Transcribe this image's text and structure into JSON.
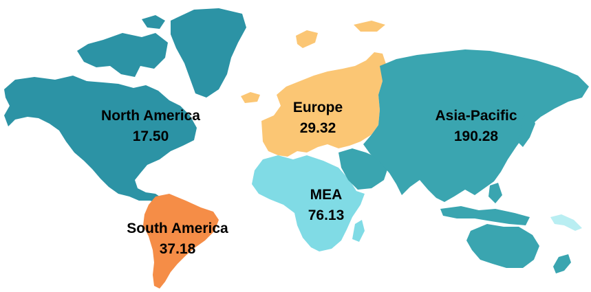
{
  "regions": [
    {
      "id": "north-america",
      "name": "North America",
      "value": "17.50",
      "color": "#2c93a5"
    },
    {
      "id": "south-america",
      "name": "South America",
      "value": "37.18",
      "color": "#f58d47"
    },
    {
      "id": "europe",
      "name": "Europe",
      "value": "29.32",
      "color": "#fbc674"
    },
    {
      "id": "mea",
      "name": "MEA",
      "value": "76.13",
      "color": "#80dbe5"
    },
    {
      "id": "asia-pacific",
      "name": "Asia-Pacific",
      "value": "190.28",
      "color": "#3aa5b0"
    }
  ]
}
